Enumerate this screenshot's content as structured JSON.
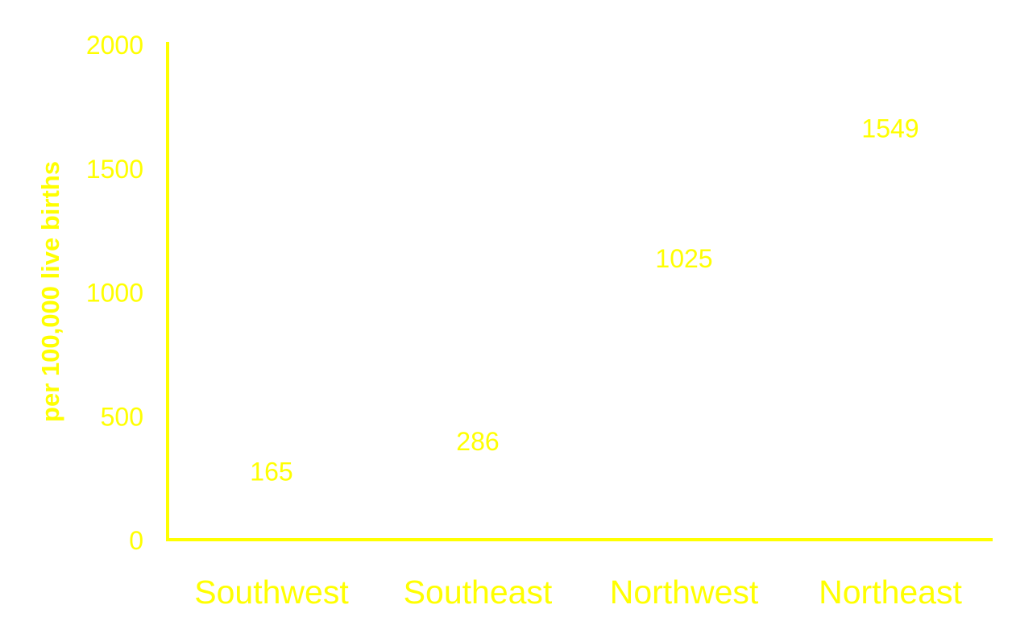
{
  "chart_data": {
    "type": "bar",
    "title": "",
    "xlabel": "",
    "ylabel": "per 100,000 live births",
    "categories": [
      "Southwest",
      "Southeast",
      "Northwest",
      "Northeast"
    ],
    "values": [
      165,
      286,
      1025,
      1549
    ],
    "value_labels": [
      "165",
      "286",
      "1025",
      "1549"
    ],
    "yticks": [
      0,
      500,
      1000,
      1500,
      2000
    ],
    "ytick_labels": [
      "0",
      "500",
      "1000",
      "1500",
      "2000"
    ],
    "ylim": [
      0,
      2000
    ],
    "grid": false,
    "legend": "none",
    "colors": {
      "text": "#ffff00",
      "axis": "#ffff00",
      "bars": "#ffffff"
    }
  }
}
